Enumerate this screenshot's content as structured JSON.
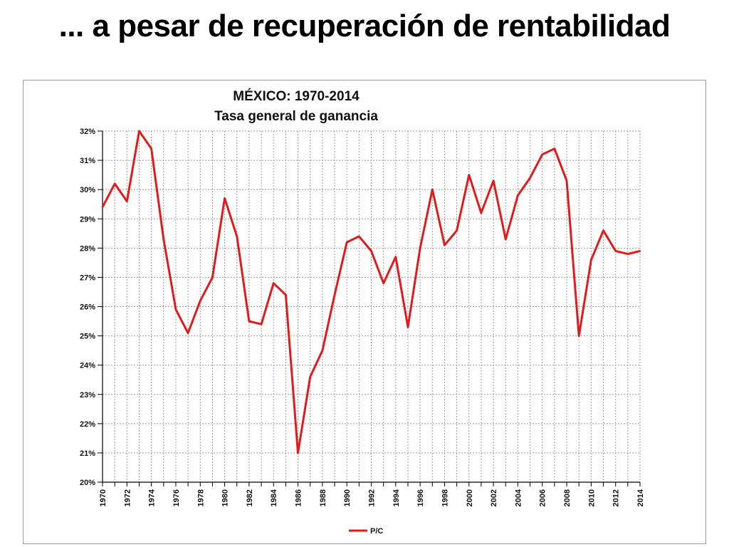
{
  "slide": {
    "title": "... a pesar de recuperación de rentabilidad"
  },
  "chart_data": {
    "type": "line",
    "title_lines": [
      "MÉXICO: 1970-2014",
      "Tasa general de ganancia"
    ],
    "xlabel": "",
    "ylabel": "",
    "ylim": [
      20,
      32
    ],
    "y_tick_labels": [
      "20%",
      "21%",
      "22%",
      "23%",
      "24%",
      "25%",
      "26%",
      "27%",
      "28%",
      "29%",
      "30%",
      "31%",
      "32%"
    ],
    "x_tick_labels": [
      "1970",
      "1972",
      "1974",
      "1976",
      "1978",
      "1980",
      "1982",
      "1984",
      "1986",
      "1988",
      "1990",
      "1992",
      "1994",
      "1996",
      "1998",
      "2000",
      "2002",
      "2004",
      "2006",
      "2008",
      "2010",
      "2012",
      "2014"
    ],
    "grid": true,
    "legend_position": "bottom",
    "x": [
      1970,
      1971,
      1972,
      1973,
      1974,
      1975,
      1976,
      1977,
      1978,
      1979,
      1980,
      1981,
      1982,
      1983,
      1984,
      1985,
      1986,
      1987,
      1988,
      1989,
      1990,
      1991,
      1992,
      1993,
      1994,
      1995,
      1996,
      1997,
      1998,
      1999,
      2000,
      2001,
      2002,
      2003,
      2004,
      2005,
      2006,
      2007,
      2008,
      2009,
      2010,
      2011,
      2012,
      2013,
      2014
    ],
    "series": [
      {
        "name": "P/C",
        "color": "#e31a1c",
        "values": [
          29.4,
          30.2,
          29.6,
          32.0,
          31.4,
          28.3,
          25.9,
          25.1,
          26.2,
          27.0,
          29.7,
          28.4,
          25.5,
          25.4,
          26.8,
          26.4,
          21.0,
          23.6,
          24.5,
          26.4,
          28.2,
          28.4,
          27.9,
          26.8,
          27.7,
          25.3,
          28.0,
          30.0,
          28.1,
          28.6,
          30.5,
          29.2,
          30.3,
          28.3,
          29.8,
          30.4,
          31.2,
          31.4,
          30.3,
          25.0,
          27.6,
          28.6,
          27.9,
          27.8,
          27.9
        ]
      }
    ]
  }
}
